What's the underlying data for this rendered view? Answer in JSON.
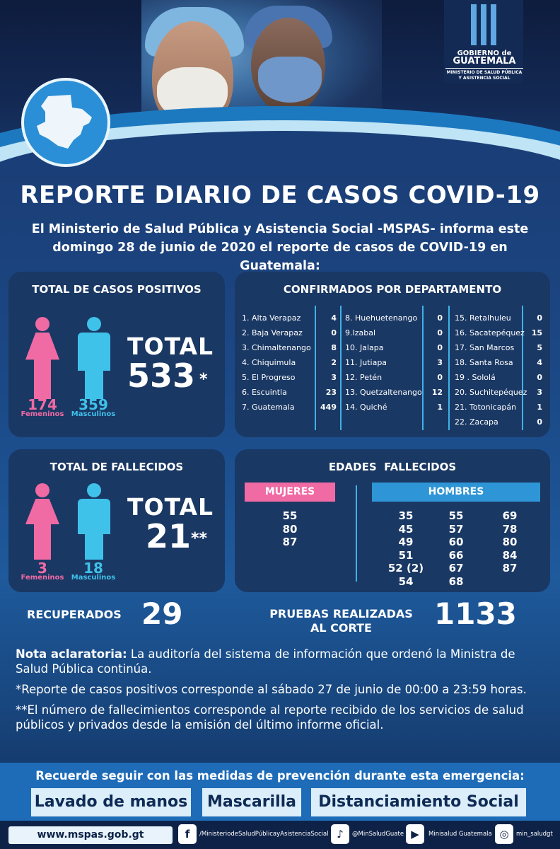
{
  "header": {
    "logo_line1": "GOBIERNO de",
    "logo_line2": "GUATEMALA",
    "logo_sub": "MINISTERIO DE SALUD PÚBLICA Y ASISTENCIA SOCIAL"
  },
  "title": "REPORTE DIARIO DE CASOS COVID-19",
  "intro": "El Ministerio de Salud Pública y Asistencia Social -MSPAS- informa este domingo 28 de junio de 2020 el reporte de casos de COVID-19 en Guatemala:",
  "positivos": {
    "heading": "TOTAL DE CASOS POSITIVOS",
    "female_count": "174",
    "female_label": "Femeninos",
    "male_count": "359",
    "male_label": "Masculinos",
    "total_word": "TOTAL",
    "total": "533",
    "mark": "*"
  },
  "departamentos": {
    "heading": "CONFIRMADOS POR DEPARTAMENTO",
    "col1": [
      {
        "name": "1. Alta Verapaz",
        "value": "4"
      },
      {
        "name": "2. Baja Verapaz",
        "value": "0"
      },
      {
        "name": "3. Chimaltenango",
        "value": "8"
      },
      {
        "name": "4. Chiquimula",
        "value": "2"
      },
      {
        "name": "5. El Progreso",
        "value": "3"
      },
      {
        "name": "6. Escuintla",
        "value": "23"
      },
      {
        "name": "7. Guatemala",
        "value": "449"
      }
    ],
    "col2": [
      {
        "name": "8. Huehuetenango",
        "value": "0"
      },
      {
        "name": "9.Izabal",
        "value": "0"
      },
      {
        "name": "10. Jalapa",
        "value": "0"
      },
      {
        "name": "11. Jutiapa",
        "value": "3"
      },
      {
        "name": "12. Petén",
        "value": "0"
      },
      {
        "name": "13. Quetzaltenango",
        "value": "12"
      },
      {
        "name": "14. Quiché",
        "value": "1"
      }
    ],
    "col3": [
      {
        "name": "15. Retalhuleu",
        "value": "0"
      },
      {
        "name": "16. Sacatepéquez",
        "value": "15"
      },
      {
        "name": "17. San Marcos",
        "value": "5"
      },
      {
        "name": "18. Santa Rosa",
        "value": "4"
      },
      {
        "name": "19 . Sololá",
        "value": "0"
      },
      {
        "name": "20. Suchitepéquez",
        "value": "3"
      },
      {
        "name": "21. Totonicapán",
        "value": "1"
      },
      {
        "name": "22. Zacapa",
        "value": "0"
      }
    ]
  },
  "fallecidos": {
    "heading": "TOTAL DE FALLECIDOS",
    "female_count": "3",
    "female_label": "Femeninos",
    "male_count": "18",
    "male_label": "Masculinos",
    "total_word": "TOTAL",
    "total": "21",
    "mark": "**"
  },
  "edades": {
    "heading": "EDADES  FALLECIDOS",
    "mujeres_label": "MUJERES",
    "mujeres": [
      "55",
      "80",
      "87"
    ],
    "hombres_label": "HOMBRES",
    "hombres_col1": [
      "35",
      "45",
      "49",
      "51",
      "52 (2)",
      "54"
    ],
    "hombres_col2": [
      "55",
      "57",
      "60",
      "66",
      "67",
      "68"
    ],
    "hombres_col3": [
      "69",
      "78",
      "80",
      "84",
      "87"
    ]
  },
  "recuperados": {
    "label": "RECUPERADOS",
    "value": "29"
  },
  "pruebas": {
    "label_line1": "PRUEBAS REALIZADAS",
    "label_line2": "AL CORTE",
    "value": "1133"
  },
  "notes": {
    "nota_label": "Nota aclaratoria:",
    "nota_text": " La auditoría del sistema de información que ordenó la Ministra de Salud Pública continúa.",
    "note1": "*Reporte de casos positivos corresponde al sábado 27 de junio de 00:00 a 23:59 horas.",
    "note2": "**El número de fallecimientos corresponde al reporte recibido de los servicios de salud públicos y privados desde la emisión del último informe oficial."
  },
  "footer": {
    "recuerde": "Recuerde seguir con las medidas de prevención durante esta emergencia:",
    "measure1": "Lavado de manos",
    "measure2": "Mascarilla",
    "measure3": "Distanciamiento Social",
    "website": "www.mspas.gob.gt",
    "facebook": "/MinisteriodeSaludPúblicayAsistenciaSocial",
    "twitter": "@MinSaludGuate",
    "youtube": "Minisalud Guatemala",
    "instagram": "min_saludgt"
  },
  "colors": {
    "female": "#f06aa4",
    "male": "#3fc2ea",
    "panel": "#1a3864"
  }
}
